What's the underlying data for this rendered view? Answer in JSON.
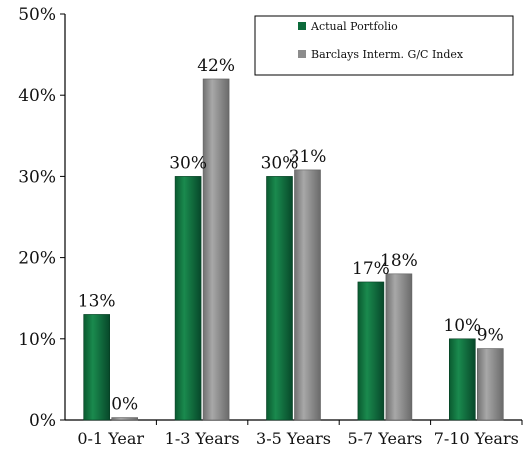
{
  "chart_data": {
    "type": "bar",
    "categories": [
      "0-1 Year",
      "1-3 Years",
      "3-5 Years",
      "5-7 Years",
      "7-10 Years"
    ],
    "series": [
      {
        "name": "Actual Portfolio",
        "values": [
          13,
          30,
          30,
          17,
          10
        ],
        "labels": [
          "13%",
          "30%",
          "30%",
          "17%",
          "10%"
        ],
        "color": "#0c6a3a"
      },
      {
        "name": "Barclays Interm. G/C Index",
        "values": [
          0.3,
          42,
          30.8,
          18,
          8.8
        ],
        "labels": [
          "0%",
          "42%",
          "31%",
          "18%",
          "9%"
        ],
        "color": "#8c8c8c"
      }
    ],
    "ylim": [
      0,
      50
    ],
    "yticks": [
      0,
      10,
      20,
      30,
      40,
      50
    ],
    "ytick_labels": [
      "0%",
      "10%",
      "20%",
      "30%",
      "40%",
      "50%"
    ],
    "grid": false,
    "legend_position": "top-right",
    "title": "",
    "xlabel": "",
    "ylabel": ""
  }
}
